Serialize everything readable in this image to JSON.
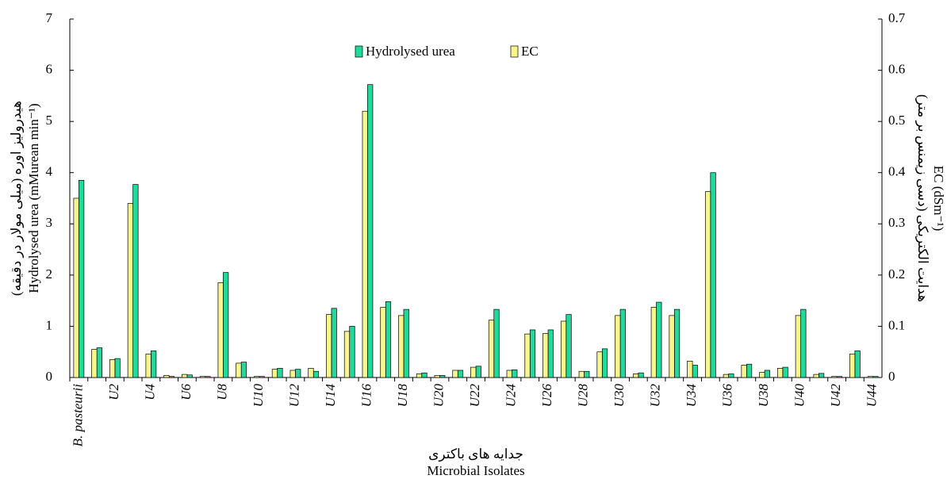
{
  "chart_data": {
    "type": "bar",
    "ylabel": [
      "هیدرولیز اوره (میلی مولار در دقیقه)",
      "Hydrolysed urea (mMurean min⁻¹)"
    ],
    "y2label": [
      "هدایت الکتریکی (دسی زیمنس بر متر)",
      "EC (dSm⁻¹)"
    ],
    "xlabel": [
      "جدایه های باکتری",
      "Microbial Isolates"
    ],
    "categories": [
      "B. pasteurii",
      null,
      "U2",
      null,
      "U4",
      null,
      "U6",
      null,
      "U8",
      null,
      "U10",
      null,
      "U12",
      null,
      "U14",
      null,
      "U16",
      null,
      "U18",
      null,
      "U20",
      null,
      "U22",
      null,
      "U24",
      null,
      "U26",
      null,
      "U28",
      null,
      "U30",
      null,
      "U32",
      null,
      "U34",
      null,
      "U36",
      null,
      "U38",
      null,
      "U40",
      null,
      "U42",
      null,
      "U44"
    ],
    "series": [
      {
        "name": "Hydrolysed urea",
        "color": "#21d99b",
        "axis": "y",
        "values": [
          3.85,
          0.58,
          0.37,
          3.77,
          0.52,
          0.02,
          0.05,
          0.02,
          2.05,
          0.3,
          0.02,
          0.18,
          0.16,
          0.12,
          1.35,
          1.0,
          5.72,
          1.48,
          1.33,
          0.09,
          0.04,
          0.14,
          0.22,
          1.33,
          0.15,
          0.93,
          0.93,
          1.23,
          0.12,
          0.56,
          1.33,
          0.09,
          1.47,
          1.33,
          0.24,
          4.0,
          0.07,
          0.26,
          0.14,
          0.2,
          1.33,
          0.08,
          0.02,
          0.52,
          0.02
        ]
      },
      {
        "name": "EC",
        "color": "#f7f58c",
        "axis": "y2",
        "values": [
          0.35,
          0.055,
          0.035,
          0.34,
          0.046,
          0.004,
          0.006,
          0.002,
          0.185,
          0.028,
          0.002,
          0.016,
          0.014,
          0.018,
          0.123,
          0.09,
          0.52,
          0.137,
          0.121,
          0.007,
          0.004,
          0.014,
          0.02,
          0.112,
          0.014,
          0.085,
          0.086,
          0.11,
          0.012,
          0.05,
          0.121,
          0.007,
          0.137,
          0.121,
          0.032,
          0.363,
          0.006,
          0.024,
          0.01,
          0.018,
          0.121,
          0.006,
          0.002,
          0.046,
          0.002
        ]
      }
    ],
    "ylim": [
      0,
      7
    ],
    "yticks": [
      0,
      1,
      2,
      3,
      4,
      5,
      6,
      7
    ],
    "y2lim": [
      0,
      0.7
    ],
    "y2ticks": [
      0,
      0.1,
      0.2,
      0.3,
      0.4,
      0.5,
      0.6,
      0.7
    ]
  }
}
